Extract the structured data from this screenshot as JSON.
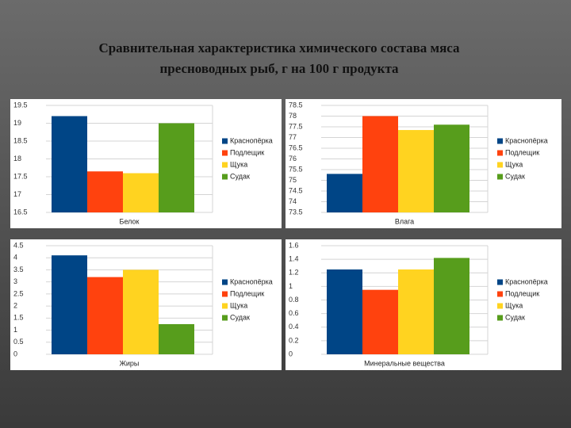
{
  "title": [
    "Сравнительная характеристика химического состава мяса",
    "пресноводных  рыб, г на 100 г продукта"
  ],
  "chart_data": [
    {
      "type": "bar",
      "x_label": "Белок",
      "ylim": [
        16.5,
        19.5
      ],
      "yticks": [
        16.5,
        17,
        17.5,
        18,
        18.5,
        19,
        19.5
      ],
      "grid": true,
      "legend": "right",
      "series": [
        {
          "name": "Краснопёрка",
          "color": "#004586",
          "values": [
            19.2
          ]
        },
        {
          "name": "Подлещик",
          "color": "#ff420e",
          "values": [
            17.65
          ]
        },
        {
          "name": "Щука",
          "color": "#ffd320",
          "values": [
            17.6
          ]
        },
        {
          "name": "Судак",
          "color": "#579d1c",
          "values": [
            19.0
          ]
        }
      ]
    },
    {
      "type": "bar",
      "x_label": "Влага",
      "ylim": [
        73.5,
        78.5
      ],
      "yticks": [
        73.5,
        74,
        74.5,
        75,
        75.5,
        76,
        76.5,
        77,
        77.5,
        78,
        78.5
      ],
      "grid": true,
      "legend": "right",
      "series": [
        {
          "name": "Краснопёрка",
          "color": "#004586",
          "values": [
            75.3
          ]
        },
        {
          "name": "Подлещик",
          "color": "#ff420e",
          "values": [
            78.0
          ]
        },
        {
          "name": "Щука",
          "color": "#ffd320",
          "values": [
            77.35
          ]
        },
        {
          "name": "Судак",
          "color": "#579d1c",
          "values": [
            77.6
          ]
        }
      ]
    },
    {
      "type": "bar",
      "x_label": "Жиры",
      "ylim": [
        0,
        4.5
      ],
      "yticks": [
        0,
        0.5,
        1,
        1.5,
        2,
        2.5,
        3,
        3.5,
        4,
        4.5
      ],
      "grid": true,
      "legend": "right",
      "series": [
        {
          "name": "Краснопёрка",
          "color": "#004586",
          "values": [
            4.1
          ]
        },
        {
          "name": "Подлещик",
          "color": "#ff420e",
          "values": [
            3.2
          ]
        },
        {
          "name": "Щука",
          "color": "#ffd320",
          "values": [
            3.5
          ]
        },
        {
          "name": "Судак",
          "color": "#579d1c",
          "values": [
            1.25
          ]
        }
      ]
    },
    {
      "type": "bar",
      "x_label": "Минеральные вещества",
      "ylim": [
        0,
        1.6
      ],
      "yticks": [
        0,
        0.2,
        0.4,
        0.6,
        0.8,
        1,
        1.2,
        1.4,
        1.6
      ],
      "grid": true,
      "legend": "right",
      "series": [
        {
          "name": "Краснопёрка",
          "color": "#004586",
          "values": [
            1.25
          ]
        },
        {
          "name": "Подлещик",
          "color": "#ff420e",
          "values": [
            0.95
          ]
        },
        {
          "name": "Щука",
          "color": "#ffd320",
          "values": [
            1.25
          ]
        },
        {
          "name": "Судак",
          "color": "#579d1c",
          "values": [
            1.42
          ]
        }
      ]
    }
  ]
}
